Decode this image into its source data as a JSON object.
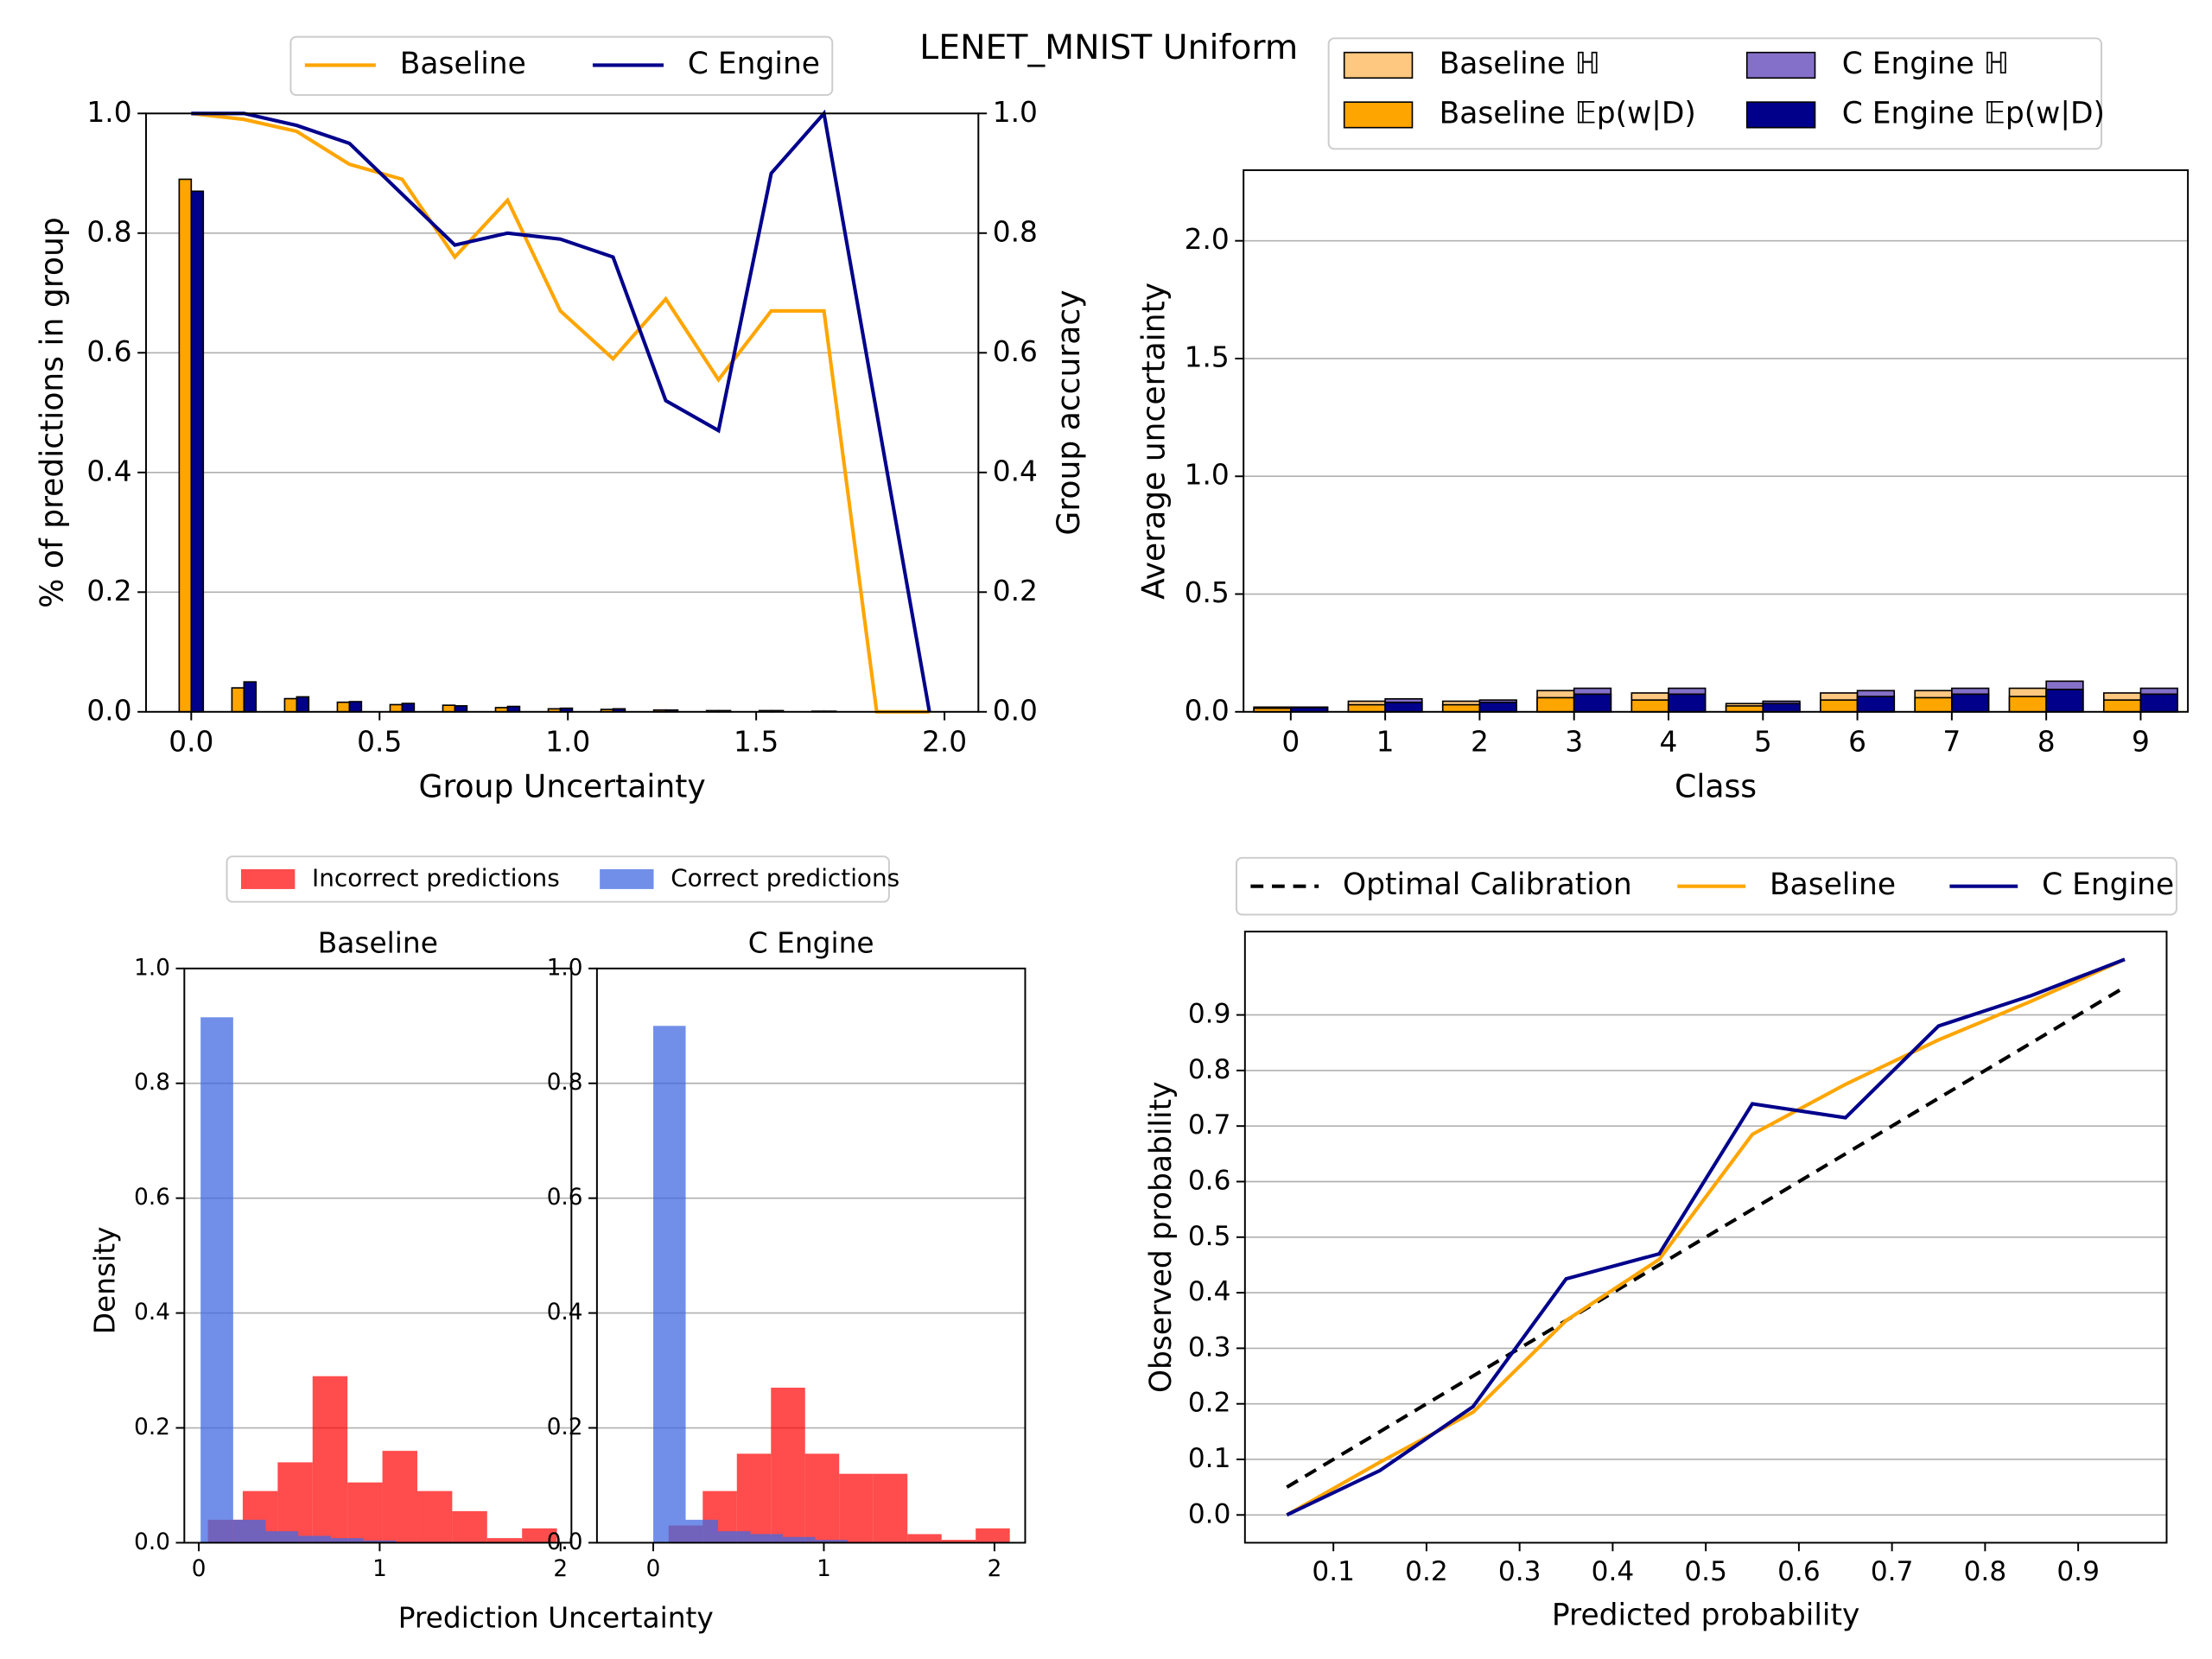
{
  "title": "LENET_MNIST Uniform",
  "chart_data": [
    {
      "type": "bar_line",
      "xlabel": "Group Uncertainty",
      "ylabel": "% of predictions in group",
      "y2label": "Group accuracy",
      "x": [
        0,
        0.14,
        0.28,
        0.42,
        0.56,
        0.7,
        0.84,
        0.98,
        1.12,
        1.26,
        1.4,
        1.54,
        1.68,
        1.82,
        1.96
      ],
      "bar_series": [
        {
          "color": "#ffa500",
          "values": [
            0.89,
            0.04,
            0.022,
            0.016,
            0.012,
            0.011,
            0.007,
            0.005,
            0.004,
            0.003,
            0.002,
            0.002,
            0.001,
            0,
            0
          ]
        },
        {
          "color": "#00008b",
          "values": [
            0.87,
            0.05,
            0.025,
            0.017,
            0.014,
            0.01,
            0.009,
            0.006,
            0.005,
            0.003,
            0.002,
            0.002,
            0.001,
            0,
            0
          ]
        }
      ],
      "series": [
        {
          "name": "Baseline",
          "color": "#ffa500",
          "axis": "y2",
          "values": [
            1.0,
            0.99,
            0.97,
            0.915,
            0.89,
            0.76,
            0.855,
            0.67,
            0.59,
            0.69,
            0.555,
            0.67,
            0.67,
            0,
            0
          ]
        },
        {
          "name": "C Engine",
          "color": "#00008b",
          "axis": "y2",
          "values": [
            1.0,
            1.0,
            0.98,
            0.95,
            0.865,
            0.78,
            0.8,
            0.79,
            0.76,
            0.52,
            0.47,
            0.9,
            1.0,
            0.5,
            0
          ]
        }
      ],
      "xlim": [
        -0.12,
        2.09
      ],
      "xticks": [
        {
          "value": 0,
          "label": "0.0"
        },
        0.5,
        {
          "value": 1,
          "label": "1.0"
        },
        1.5,
        {
          "value": 2,
          "label": "2.0"
        }
      ],
      "ylim": [
        0,
        1
      ],
      "yticks": [
        {
          "value": 0,
          "label": "0.0"
        },
        0.2,
        0.4,
        0.6,
        0.8,
        {
          "value": 1,
          "label": "1.0"
        }
      ],
      "y2lim": [
        0,
        1
      ],
      "y2ticks": [
        {
          "value": 0,
          "label": "0.0"
        },
        0.2,
        0.4,
        0.6,
        0.8,
        {
          "value": 1,
          "label": "1.0"
        }
      ],
      "grid": true
    },
    {
      "type": "bar",
      "xlabel": "Class",
      "ylabel": "Average uncertainty",
      "categories": [
        "0",
        "1",
        "2",
        "3",
        "4",
        "5",
        "6",
        "7",
        "8",
        "9"
      ],
      "series": [
        {
          "name": "Baseline ℍ",
          "color": "#ffc880",
          "values": [
            0.02,
            0.045,
            0.045,
            0.09,
            0.08,
            0.035,
            0.08,
            0.09,
            0.1,
            0.08
          ]
        },
        {
          "name": "Baseline 𝔼p(w|D)",
          "color": "#ffa500",
          "values": [
            0.015,
            0.03,
            0.03,
            0.06,
            0.05,
            0.025,
            0.05,
            0.06,
            0.065,
            0.05
          ]
        },
        {
          "name": "C Engine ℍ",
          "color": "#8470c8",
          "values": [
            0.02,
            0.055,
            0.05,
            0.1,
            0.1,
            0.045,
            0.09,
            0.1,
            0.13,
            0.1
          ]
        },
        {
          "name": "C Engine 𝔼p(w|D)",
          "color": "#00008b",
          "values": [
            0.018,
            0.04,
            0.04,
            0.075,
            0.075,
            0.035,
            0.065,
            0.075,
            0.095,
            0.075
          ]
        }
      ],
      "ylim": [
        0,
        2.3
      ],
      "yticks": [
        {
          "value": 0,
          "label": "0.0"
        },
        0.5,
        {
          "value": 1,
          "label": "1.0"
        },
        1.5,
        {
          "value": 2,
          "label": "2.0"
        }
      ],
      "grid": true
    },
    {
      "type": "histogram",
      "xlabel": "Prediction Uncertainty",
      "ylabel": "Density",
      "series": [
        {
          "name": "Incorrect predictions",
          "color": "#ff0000",
          "alpha": 0.7
        },
        {
          "name": "Correct predictions",
          "color": "#4169e1",
          "alpha": 0.75
        }
      ],
      "ylim": [
        0,
        1
      ],
      "yticks": [
        {
          "value": 0,
          "label": "0.0"
        },
        0.2,
        0.4,
        0.6,
        0.8,
        {
          "value": 1,
          "label": "1.0"
        }
      ],
      "grid": true,
      "panels": [
        {
          "title": "Baseline",
          "xlim": [
            -0.08,
            2.06
          ],
          "xticks": [
            0,
            1,
            2
          ],
          "hists": [
            {
              "bins": [
                0.05,
                0.243,
                0.436,
                0.629,
                0.822,
                1.015,
                1.208,
                1.401,
                1.594,
                1.787,
                1.98
              ],
              "values": [
                0.04,
                0.09,
                0.14,
                0.29,
                0.105,
                0.16,
                0.09,
                0.055,
                0.008,
                0.025
              ]
            },
            {
              "bins": [
                0.01,
                0.19,
                0.37,
                0.55,
                0.73,
                0.91,
                1.09
              ],
              "values": [
                0.915,
                0.04,
                0.02,
                0.012,
                0.008,
                0.004
              ]
            }
          ]
        },
        {
          "title": "C Engine",
          "xlim": [
            -0.33,
            2.18
          ],
          "xticks": [
            0,
            1,
            2
          ],
          "hists": [
            {
              "bins": [
                0.09,
                0.29,
                0.49,
                0.69,
                0.89,
                1.09,
                1.29,
                1.49,
                1.69,
                1.89,
                2.09
              ],
              "values": [
                0.03,
                0.09,
                0.155,
                0.27,
                0.155,
                0.12,
                0.12,
                0.015,
                0.005,
                0.025
              ]
            },
            {
              "bins": [
                0,
                0.19,
                0.38,
                0.57,
                0.76,
                0.95,
                1.14
              ],
              "values": [
                0.9,
                0.04,
                0.02,
                0.015,
                0.01,
                0.005
              ]
            }
          ]
        }
      ]
    },
    {
      "type": "line",
      "xlabel": "Predicted probability",
      "ylabel": "Observed probability",
      "x": [
        0.05,
        0.15,
        0.25,
        0.35,
        0.45,
        0.55,
        0.65,
        0.75,
        0.85,
        0.95
      ],
      "series": [
        {
          "name": "Optimal Calibration",
          "color": "#000000",
          "linestyle": "dashed",
          "values": [
            0.05,
            0.15,
            0.25,
            0.35,
            0.45,
            0.55,
            0.65,
            0.75,
            0.85,
            0.95
          ]
        },
        {
          "name": "Baseline",
          "color": "#ffa500",
          "linestyle": "solid",
          "values": [
            0.0,
            0.095,
            0.185,
            0.35,
            0.46,
            0.685,
            0.775,
            0.855,
            0.925,
            1.0
          ]
        },
        {
          "name": "C Engine",
          "color": "#00008b",
          "linestyle": "solid",
          "values": [
            0.0,
            0.08,
            0.195,
            0.425,
            0.47,
            0.74,
            0.715,
            0.88,
            0.935,
            1.0
          ]
        }
      ],
      "xlim": [
        0.005,
        0.995
      ],
      "xticks": [
        0.1,
        0.2,
        0.3,
        0.4,
        0.5,
        0.6,
        0.7,
        0.8,
        0.9
      ],
      "ylim": [
        -0.05,
        1.05
      ],
      "yticks": [
        {
          "value": 0,
          "label": "0.0"
        },
        0.1,
        0.2,
        0.3,
        0.4,
        0.5,
        0.6,
        0.7,
        0.8,
        0.9
      ],
      "grid": true
    }
  ]
}
